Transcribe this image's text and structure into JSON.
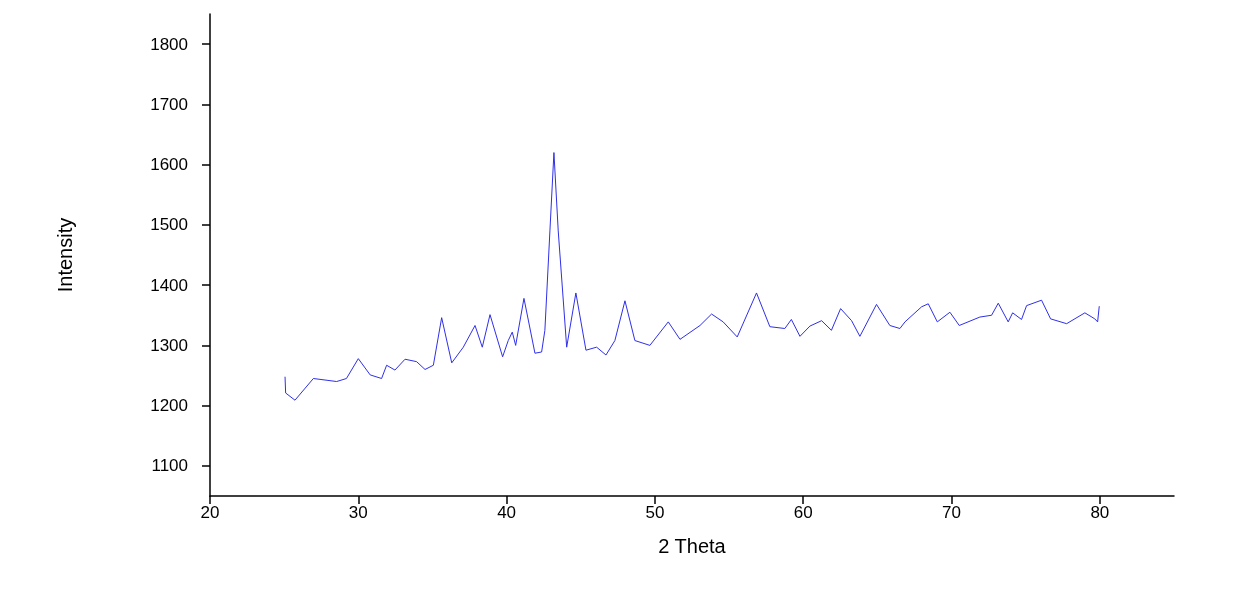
{
  "chart_data": {
    "type": "line",
    "xlabel": "2 Theta",
    "ylabel": "Intensity",
    "xlim": [
      20,
      85
    ],
    "xticks": [
      20,
      30,
      40,
      50,
      60,
      70,
      80
    ],
    "ylim": [
      1050,
      1850
    ],
    "yticks": [
      1100,
      1200,
      1300,
      1400,
      1500,
      1600,
      1700,
      1800
    ],
    "grid": false,
    "marker": "none",
    "line_style": "solid",
    "series": [
      {
        "color": "#2f2fe8",
        "x": [
          25.06,
          25.1,
          25.73,
          26.97,
          28.54,
          29.2,
          30.0,
          30.8,
          31.57,
          31.91,
          32.47,
          33.15,
          33.93,
          34.5,
          35.06,
          35.62,
          36.3,
          37.08,
          37.87,
          38.36,
          38.88,
          39.73,
          40.11,
          40.38,
          40.61,
          41.17,
          41.91,
          42.36,
          42.58,
          42.92,
          43.19,
          43.48,
          44.05,
          44.67,
          45.35,
          46.07,
          46.7,
          47.3,
          47.98,
          48.65,
          49.66,
          50.9,
          51.69,
          53.04,
          53.82,
          54.6,
          55.55,
          56.85,
          57.75,
          58.76,
          59.2,
          59.78,
          60.45,
          61.24,
          61.9,
          62.52,
          63.26,
          63.82,
          64.94,
          65.84,
          66.52,
          66.86,
          67.98,
          68.43,
          69.04,
          69.89,
          70.52,
          71.91,
          72.7,
          73.15,
          73.82,
          74.12,
          74.72,
          75.06,
          76.07,
          76.68,
          77.76,
          78.99,
          79.66,
          79.85,
          79.96
        ],
        "values": [
          1248,
          1221,
          1209,
          1245,
          1240,
          1245,
          1278,
          1251,
          1245,
          1267,
          1259,
          1277,
          1273,
          1260,
          1267,
          1346,
          1271,
          1297,
          1333,
          1297,
          1351,
          1281,
          1308,
          1322,
          1300,
          1378,
          1287,
          1289,
          1325,
          1490,
          1620,
          1490,
          1297,
          1387,
          1292,
          1297,
          1284,
          1308,
          1374,
          1308,
          1300,
          1339,
          1310,
          1333,
          1352,
          1339,
          1314,
          1387,
          1331,
          1328,
          1343,
          1315,
          1332,
          1341,
          1325,
          1361,
          1341,
          1315,
          1368,
          1333,
          1328,
          1339,
          1364,
          1369,
          1339,
          1355,
          1333,
          1347,
          1350,
          1370,
          1339,
          1354,
          1343,
          1366,
          1375,
          1344,
          1336,
          1354,
          1344,
          1339,
          1365
        ]
      }
    ]
  }
}
